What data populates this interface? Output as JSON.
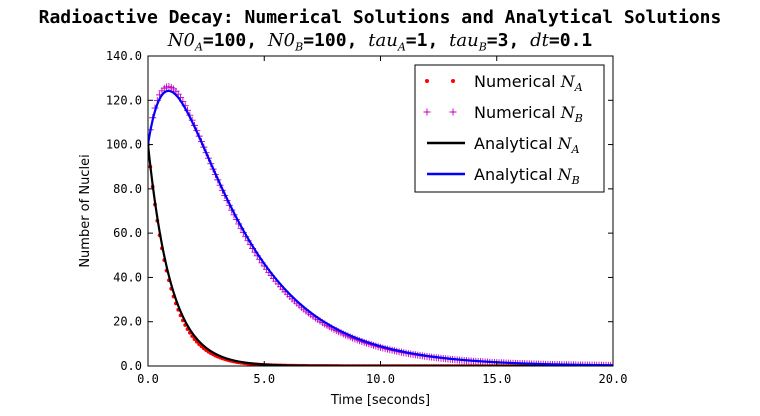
{
  "chart_data": {
    "type": "line",
    "title": "Radioactive Decay: Numerical Solutions and Analytical Solutions",
    "subtitle": {
      "parts": [
        {
          "math": "N0",
          "sub": "A",
          "text": "=100, "
        },
        {
          "math": "N0",
          "sub": "B",
          "text": "=100,"
        },
        {
          "math": "tau",
          "sub": "A",
          "text": "=1, "
        },
        {
          "math": "tau",
          "sub": "B",
          "text": "=3, "
        },
        {
          "math": "dt",
          "sub": "",
          "text": "=0.1"
        }
      ]
    },
    "xlabel": "Time [seconds]",
    "ylabel": "Number of Nuclei",
    "xlim": [
      0,
      20
    ],
    "ylim": [
      0,
      140
    ],
    "xticks": [
      "0.0",
      "5.0",
      "10.0",
      "15.0",
      "20.0"
    ],
    "yticks": [
      "0.0",
      "20.0",
      "40.0",
      "60.0",
      "80.0",
      "100.0",
      "120.0",
      "140.0"
    ],
    "grid": false,
    "legend_position": "top-right",
    "parameters": {
      "N0_A": 100,
      "N0_B": 100,
      "tau_A": 1,
      "tau_B": 3,
      "dt": 0.1,
      "t_max": 20
    },
    "series": [
      {
        "name": "Numerical",
        "sub": "A",
        "kind": "markers",
        "marker": "dot",
        "color": "#ff0000"
      },
      {
        "name": "Numerical",
        "sub": "B",
        "kind": "markers",
        "marker": "plus",
        "color": "#bf00bf"
      },
      {
        "name": "Analytical",
        "sub": "A",
        "kind": "line",
        "color": "#000000"
      },
      {
        "name": "Analytical",
        "sub": "B",
        "kind": "line",
        "color": "#0000ff"
      }
    ]
  }
}
